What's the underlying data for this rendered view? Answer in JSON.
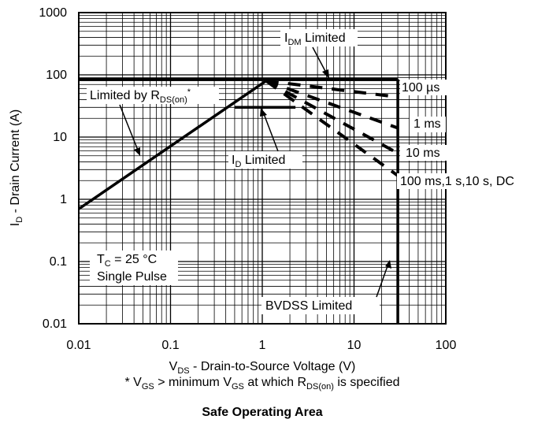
{
  "chart_data": {
    "type": "line",
    "title": "Safe Operating Area",
    "x_scale": "log",
    "y_scale": "log",
    "xlim": [
      0.01,
      100
    ],
    "ylim": [
      0.01,
      1000
    ],
    "x_ticks": [
      "0.01",
      "0.1",
      "1",
      "10",
      "100"
    ],
    "y_ticks": [
      "0.01",
      "0.1",
      "1",
      "10",
      "100",
      "1000"
    ],
    "xlabel": {
      "main": "V",
      "sub": "DS",
      "rest": " - Drain-to-Source Voltage (V)"
    },
    "ylabel": {
      "main": "I",
      "sub": "D",
      "rest": " - Drain Current (A)"
    },
    "footnote": {
      "p1": "* V",
      "s1": "GS",
      "p2": " > minimum V",
      "s2": "GS",
      "p3": " at which R",
      "s3": "DS(on)",
      "p4": " is specified"
    },
    "grid": true,
    "series": [
      {
        "name": "Limited by RDS(on)",
        "style": "solid",
        "points": [
          [
            0.01,
            0.7
          ],
          [
            1.1,
            80
          ]
        ]
      },
      {
        "name": "IDM Limited",
        "style": "solid",
        "points": [
          [
            0.01,
            85
          ],
          [
            30,
            85
          ]
        ]
      },
      {
        "name": "ID Limited",
        "style": "solid",
        "points": [
          [
            0.5,
            30
          ],
          [
            2.3,
            30
          ]
        ]
      },
      {
        "name": "BVDSS Limited",
        "style": "solid",
        "points": [
          [
            30,
            0.01
          ],
          [
            30,
            85
          ]
        ]
      },
      {
        "name": "100 µs",
        "style": "dashed",
        "points": [
          [
            1.1,
            80
          ],
          [
            30,
            44
          ]
        ]
      },
      {
        "name": "1 ms",
        "style": "dashed",
        "points": [
          [
            1.1,
            80
          ],
          [
            30,
            14
          ]
        ]
      },
      {
        "name": "10 ms",
        "style": "dashed",
        "points": [
          [
            1.1,
            80
          ],
          [
            30,
            5.5
          ]
        ]
      },
      {
        "name": "100 ms,1 s,10 s, DC",
        "style": "dashed",
        "points": [
          [
            1.1,
            80
          ],
          [
            30,
            2.4
          ]
        ]
      }
    ],
    "annotations": {
      "idm": {
        "main": "I",
        "sub": "DM",
        "rest": " Limited"
      },
      "rds": {
        "main": "Limited by R",
        "sub": "DS(on)",
        "rest": "*"
      },
      "id": {
        "main": "I",
        "sub": "D",
        "rest": " Limited"
      },
      "bvdss": "BVDSS Limited",
      "tc": {
        "main": "T",
        "sub": "C",
        "rest": " = 25 °C"
      },
      "pulse": "Single Pulse",
      "curves": [
        "100 µs",
        "1 ms",
        "10 ms",
        "100 ms,1 s,10 s, DC"
      ]
    }
  }
}
